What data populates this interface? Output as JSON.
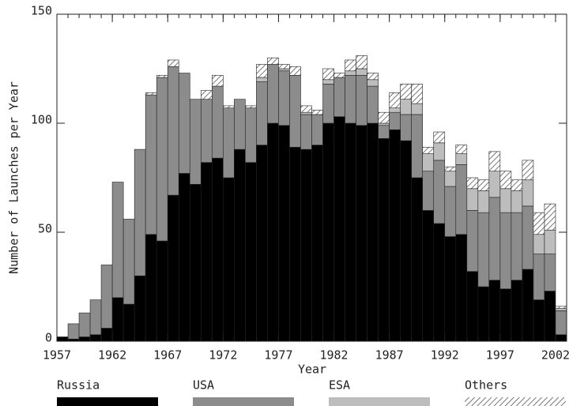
{
  "chart_data": {
    "type": "stacked_bar",
    "xlabel": "Year",
    "ylabel": "Number of Launches per Year",
    "x": [
      1957,
      1958,
      1959,
      1960,
      1961,
      1962,
      1963,
      1964,
      1965,
      1966,
      1967,
      1968,
      1969,
      1970,
      1971,
      1972,
      1973,
      1974,
      1975,
      1976,
      1977,
      1978,
      1979,
      1980,
      1981,
      1982,
      1983,
      1984,
      1985,
      1986,
      1987,
      1988,
      1989,
      1990,
      1991,
      1992,
      1993,
      1994,
      1995,
      1996,
      1997,
      1998,
      1999,
      2000,
      2001,
      2002
    ],
    "series": [
      {
        "name": "Russia",
        "color": "#000000",
        "values": [
          2,
          1,
          2,
          3,
          6,
          20,
          17,
          30,
          49,
          46,
          67,
          77,
          72,
          82,
          84,
          75,
          88,
          82,
          90,
          100,
          99,
          89,
          88,
          90,
          100,
          103,
          100,
          99,
          100,
          93,
          97,
          92,
          75,
          60,
          54,
          48,
          49,
          32,
          25,
          28,
          24,
          28,
          33,
          19,
          23,
          3
        ]
      },
      {
        "name": "USA",
        "color": "#8c8c8c",
        "values": [
          0,
          7,
          11,
          16,
          29,
          53,
          39,
          58,
          64,
          75,
          59,
          46,
          39,
          29,
          33,
          32,
          23,
          25,
          29,
          27,
          25,
          33,
          16,
          14,
          18,
          18,
          22,
          23,
          17,
          6,
          8,
          12,
          29,
          18,
          29,
          23,
          32,
          28,
          34,
          38,
          35,
          31,
          29,
          21,
          17,
          11
        ]
      },
      {
        "name": "ESA",
        "color": "#bdbdbd",
        "values": [
          0,
          0,
          0,
          0,
          0,
          0,
          0,
          0,
          0,
          0,
          0,
          0,
          0,
          0,
          0,
          0,
          0,
          0,
          2,
          0,
          1,
          0,
          1,
          0,
          2,
          0,
          2,
          3,
          3,
          1,
          2,
          7,
          5,
          8,
          8,
          7,
          5,
          10,
          10,
          12,
          11,
          10,
          12,
          9,
          11,
          1
        ]
      },
      {
        "name": "Others",
        "color": "#555555",
        "hatch": true,
        "values": [
          0,
          0,
          0,
          0,
          0,
          0,
          0,
          0,
          1,
          1,
          3,
          0,
          0,
          4,
          5,
          1,
          0,
          1,
          6,
          3,
          2,
          4,
          3,
          2,
          5,
          2,
          5,
          6,
          3,
          5,
          7,
          7,
          9,
          3,
          5,
          2,
          4,
          5,
          5,
          9,
          8,
          5,
          9,
          10,
          12,
          1
        ]
      }
    ],
    "xlim": [
      1957,
      2003
    ],
    "xticks": [
      1957,
      1962,
      1967,
      1972,
      1977,
      1982,
      1987,
      1992,
      1997,
      2002
    ],
    "ylim": [
      0,
      150
    ],
    "yticks": [
      0,
      50,
      100,
      150
    ],
    "legend": "bottom"
  }
}
